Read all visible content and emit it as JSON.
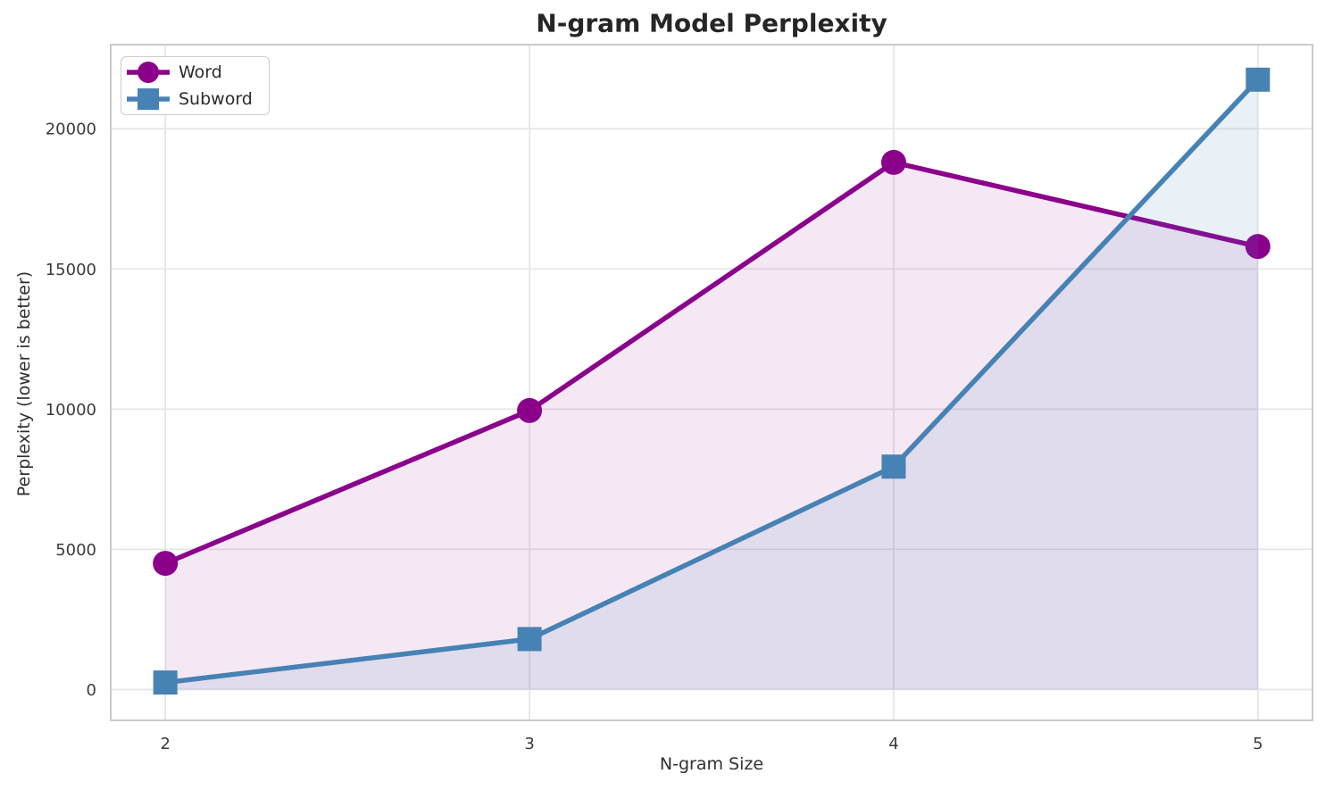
{
  "chart_data": {
    "type": "line",
    "title": "N-gram Model Perplexity",
    "xlabel": "N-gram Size",
    "ylabel": "Perplexity (lower is better)",
    "x": [
      2,
      3,
      4,
      5
    ],
    "xticks": [
      2,
      3,
      4,
      5
    ],
    "yticks": [
      0,
      5000,
      10000,
      15000,
      20000
    ],
    "xlim": [
      1.85,
      5.15
    ],
    "ylim": [
      -1100,
      23000
    ],
    "grid": true,
    "legend_position": "upper-left",
    "fill_to_zero": true,
    "series": [
      {
        "name": "Word",
        "marker": "circle",
        "color": "#8B008B",
        "fill_alpha": 0.09,
        "values": [
          4500,
          9950,
          18800,
          15800
        ]
      },
      {
        "name": "Subword",
        "marker": "square",
        "color": "#4682B4",
        "fill_alpha": 0.12,
        "values": [
          250,
          1800,
          7950,
          21750
        ]
      }
    ],
    "colors": {
      "grid": "#e6e6e6",
      "spine": "#c9c9c9",
      "title_text": "#262626",
      "tick_text": "#3b3b3b",
      "background": "#ffffff"
    }
  }
}
